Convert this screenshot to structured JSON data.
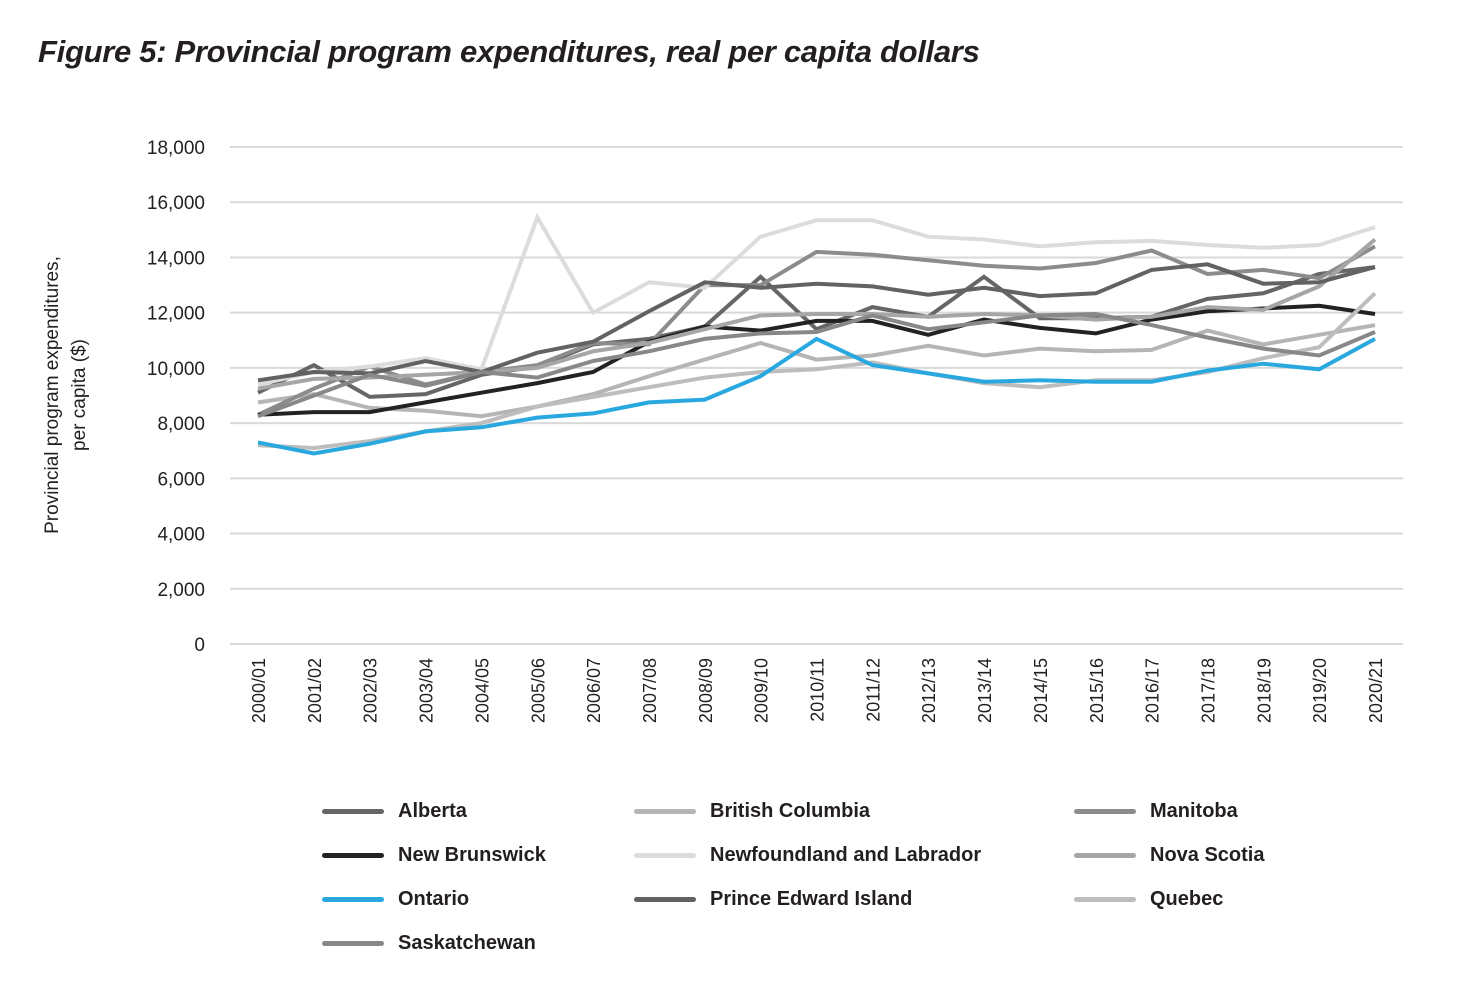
{
  "title": "Figure 5: Provincial program expenditures, real per capita dollars",
  "chart_data": {
    "type": "line",
    "title": "Figure 5: Provincial program expenditures, real per capita dollars",
    "xlabel": "",
    "ylabel": "Provincial program expenditures, per capita ($)",
    "ylabel_lines": [
      "Provincial program expenditures,",
      "per capita ($)"
    ],
    "ylim": [
      0,
      18000
    ],
    "yticks": [
      0,
      2000,
      4000,
      6000,
      8000,
      10000,
      12000,
      14000,
      16000,
      18000
    ],
    "ytick_labels": [
      "0",
      "2,000",
      "4,000",
      "6,000",
      "8,000",
      "10,000",
      "12,000",
      "14,000",
      "16,000",
      "18,000"
    ],
    "grid": true,
    "legend_position": "bottom",
    "x": [
      "2000/01",
      "2001/02",
      "2002/03",
      "2003/04",
      "2004/05",
      "2005/06",
      "2006/07",
      "2007/08",
      "2008/09",
      "2009/10",
      "2010/11",
      "2011/12",
      "2012/13",
      "2013/14",
      "2014/15",
      "2015/16",
      "2016/17",
      "2017/18",
      "2018/19",
      "2019/20",
      "2020/21"
    ],
    "series": [
      {
        "name": "Alberta",
        "color": "#666666",
        "values": [
          9100,
          10100,
          8950,
          9050,
          9750,
          10050,
          10850,
          11050,
          11500,
          13300,
          11400,
          12200,
          11850,
          13300,
          11800,
          11800,
          11850,
          12500,
          12700,
          13400,
          13650
        ]
      },
      {
        "name": "British Columbia",
        "color": "#b5b5b5",
        "values": [
          8750,
          9050,
          8550,
          8450,
          8250,
          8600,
          9050,
          9700,
          10300,
          10900,
          10300,
          10450,
          10800,
          10450,
          10700,
          10600,
          10650,
          11350,
          10850,
          11200,
          11550
        ]
      },
      {
        "name": "Manitoba",
        "color": "#8c8c8c",
        "values": [
          8300,
          9250,
          10050,
          9400,
          9850,
          10100,
          10900,
          10850,
          13000,
          13000,
          14200,
          14100,
          13900,
          13700,
          13600,
          13800,
          14250,
          13400,
          13550,
          13250,
          14400
        ]
      },
      {
        "name": "New Brunswick",
        "color": "#222222",
        "values": [
          8300,
          8400,
          8400,
          8750,
          9100,
          9450,
          9850,
          10950,
          11500,
          11350,
          11700,
          11700,
          11200,
          11750,
          11450,
          11250,
          11750,
          12050,
          12150,
          12250,
          11950
        ]
      },
      {
        "name": "Newfoundland and Labrador",
        "color": "#dcdcdc",
        "values": [
          9400,
          9850,
          10050,
          10350,
          9950,
          15450,
          12000,
          13100,
          12900,
          14750,
          15350,
          15350,
          14750,
          14650,
          14400,
          14550,
          14600,
          14450,
          14350,
          14450,
          15100
        ]
      },
      {
        "name": "Nova Scotia",
        "color": "#a6a6a6",
        "values": [
          9250,
          9600,
          9650,
          9750,
          9850,
          10000,
          10600,
          10900,
          11400,
          11900,
          11950,
          11950,
          11850,
          11950,
          11900,
          11750,
          11850,
          12200,
          12100,
          12950,
          14650
        ]
      },
      {
        "name": "Ontario",
        "color": "#29a8e0",
        "values": [
          7300,
          6900,
          7250,
          7700,
          7850,
          8200,
          8350,
          8750,
          8850,
          9700,
          11050,
          10100,
          9800,
          9500,
          9550,
          9500,
          9500,
          9900,
          10150,
          9950,
          11050
        ]
      },
      {
        "name": "Prince Edward Island",
        "color": "#626262",
        "values": [
          9550,
          9850,
          9800,
          10250,
          9850,
          10550,
          10950,
          12050,
          13100,
          12900,
          13050,
          12950,
          12650,
          12900,
          12600,
          12700,
          13550,
          13750,
          13050,
          13100,
          13650
        ]
      },
      {
        "name": "Quebec",
        "color": "#bdbdbd",
        "values": [
          7200,
          7100,
          7350,
          7700,
          8000,
          8600,
          8950,
          9300,
          9650,
          9850,
          9950,
          10200,
          9800,
          9450,
          9300,
          9550,
          9550,
          9850,
          10350,
          10750,
          12700
        ]
      },
      {
        "name": "Saskatchewan",
        "color": "#888888",
        "values": [
          8250,
          9000,
          9750,
          9350,
          9850,
          9650,
          10250,
          10600,
          11050,
          11250,
          11300,
          11900,
          11400,
          11650,
          11900,
          11950,
          11550,
          11100,
          10700,
          10450,
          11300
        ]
      }
    ],
    "legend": [
      {
        "name": "Alberta",
        "color": "#666666"
      },
      {
        "name": "British Columbia",
        "color": "#b5b5b5"
      },
      {
        "name": "Manitoba",
        "color": "#8c8c8c"
      },
      {
        "name": "New Brunswick",
        "color": "#222222"
      },
      {
        "name": "Newfoundland and Labrador",
        "color": "#dcdcdc"
      },
      {
        "name": "Nova Scotia",
        "color": "#a6a6a6"
      },
      {
        "name": "Ontario",
        "color": "#29a8e0"
      },
      {
        "name": "Prince Edward Island",
        "color": "#626262"
      },
      {
        "name": "Quebec",
        "color": "#bdbdbd"
      },
      {
        "name": "Saskatchewan",
        "color": "#888888"
      }
    ]
  }
}
